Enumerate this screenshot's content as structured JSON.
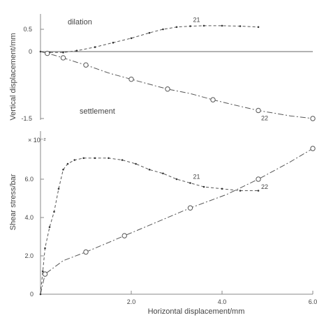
{
  "chart_data": [
    {
      "type": "line",
      "title": "",
      "ylabel": "Vertical displacement/mm",
      "xlim": [
        0,
        6.0
      ],
      "ylim": [
        -1.5,
        0.5
      ],
      "yticks": [
        "0.5",
        "0",
        "-1.5"
      ],
      "annotations": [
        "dilation",
        "settlement"
      ],
      "grid": false,
      "series": [
        {
          "name": "21",
          "style": "dashed-dots",
          "x": [
            0.0,
            0.2,
            0.5,
            0.8,
            1.2,
            1.6,
            2.0,
            2.4,
            2.7,
            3.0,
            3.3,
            3.6,
            4.0,
            4.4,
            4.8
          ],
          "y": [
            0.0,
            -0.02,
            -0.02,
            0.02,
            0.1,
            0.2,
            0.3,
            0.42,
            0.5,
            0.55,
            0.57,
            0.58,
            0.58,
            0.57,
            0.55
          ]
        },
        {
          "name": "22",
          "style": "dash-dot-circles",
          "x": [
            0.0,
            0.15,
            0.3,
            0.5,
            0.8,
            1.0,
            1.5,
            2.0,
            2.5,
            2.8,
            3.3,
            3.8,
            4.2,
            4.8,
            5.5,
            6.0
          ],
          "y": [
            0.0,
            -0.04,
            -0.08,
            -0.14,
            -0.24,
            -0.3,
            -0.48,
            -0.62,
            -0.76,
            -0.84,
            -0.94,
            -1.08,
            -1.18,
            -1.32,
            -1.44,
            -1.5
          ]
        }
      ]
    },
    {
      "type": "line",
      "title": "",
      "ylabel": "Shear stress/bar",
      "xlabel": "Horizontal displacement/mm",
      "xlim": [
        0,
        6.0
      ],
      "ylim": [
        0,
        8.0
      ],
      "ymultiplier": "× 10⁻²",
      "xticks": [
        "2.0",
        "4.0",
        "6.0"
      ],
      "yticks": [
        "0",
        "2.0",
        "4.0",
        "6.0"
      ],
      "grid": false,
      "series": [
        {
          "name": "21",
          "style": "dashed-dots",
          "x": [
            0.0,
            0.05,
            0.1,
            0.2,
            0.3,
            0.4,
            0.5,
            0.6,
            0.75,
            0.95,
            1.2,
            1.5,
            1.8,
            2.1,
            2.4,
            2.7,
            3.0,
            3.3,
            3.6,
            4.0,
            4.4,
            4.8
          ],
          "y": [
            0.0,
            1.2,
            2.4,
            3.5,
            4.3,
            5.5,
            6.5,
            6.8,
            7.0,
            7.1,
            7.1,
            7.1,
            7.0,
            6.8,
            6.5,
            6.3,
            6.0,
            5.8,
            5.6,
            5.5,
            5.4,
            5.4
          ]
        },
        {
          "name": "22",
          "style": "dash-dot-circles",
          "x": [
            0.0,
            0.1,
            0.5,
            1.0,
            1.5,
            1.85,
            2.5,
            3.3,
            4.1,
            4.8,
            5.5,
            6.0
          ],
          "y": [
            0.0,
            1.05,
            1.75,
            2.2,
            2.7,
            3.05,
            3.7,
            4.5,
            5.2,
            6.0,
            6.9,
            7.6
          ]
        }
      ]
    }
  ]
}
